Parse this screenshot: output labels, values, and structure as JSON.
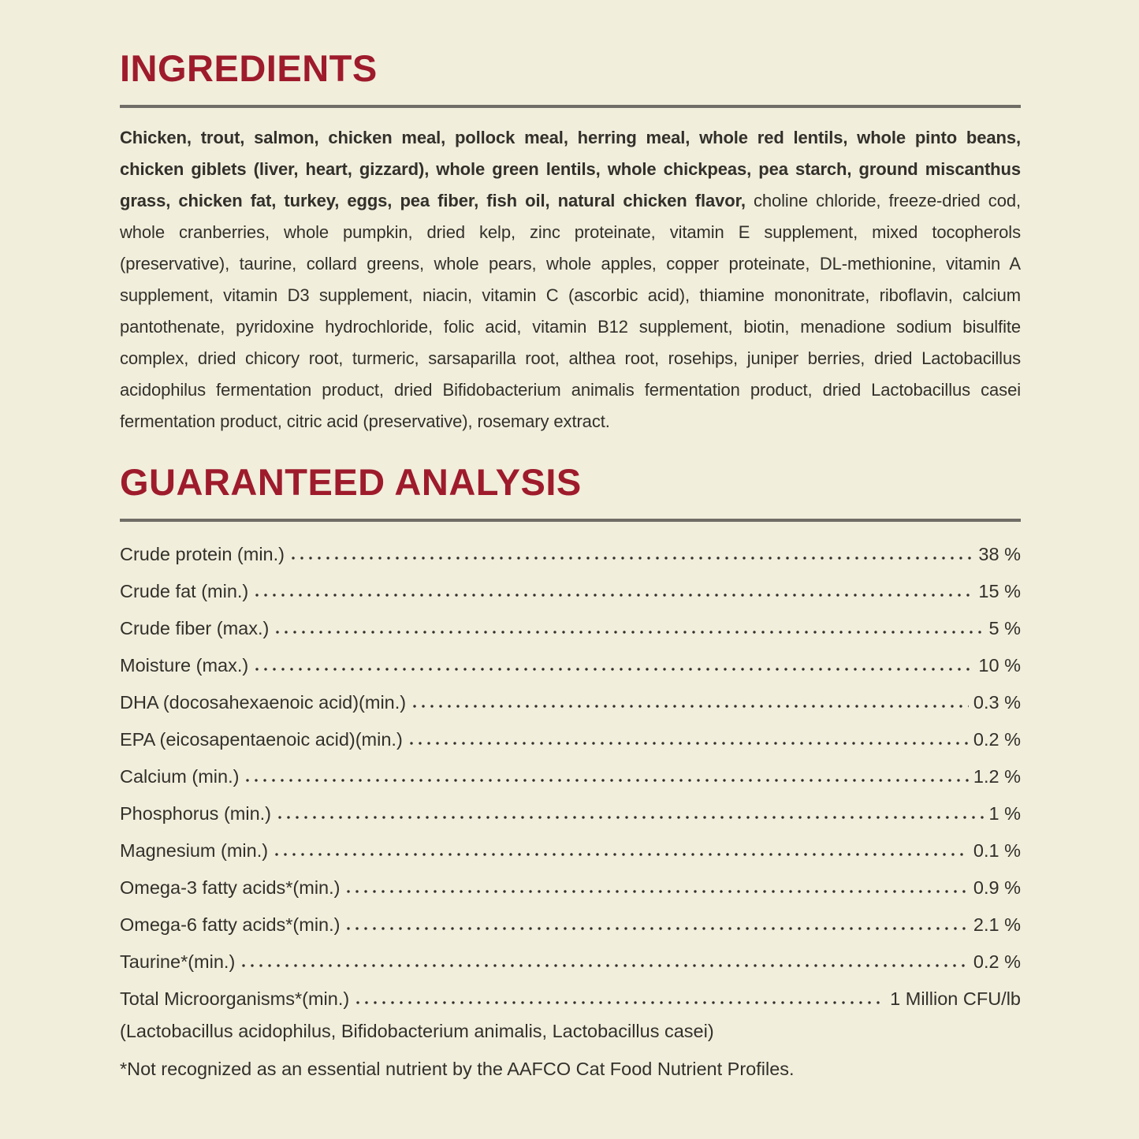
{
  "page": {
    "background_color": "#f1eedc",
    "accent_color": "#9e1b2c",
    "rule_color": "#6f6d65",
    "text_color": "#32302a"
  },
  "ingredients": {
    "title": "INGREDIENTS",
    "primary": "Chicken, trout, salmon, chicken meal, pollock meal, herring meal, whole red lentils, whole pinto beans, chicken giblets (liver, heart, gizzard), whole green lentils, whole chickpeas, pea starch, ground miscanthus grass, chicken fat, turkey, eggs, pea fiber, fish oil, natural chicken flavor,",
    "secondary": "choline chloride, freeze-dried cod, whole cranberries, whole pumpkin, dried kelp, zinc proteinate, vitamin E supplement, mixed tocopherols (preservative), taurine, collard greens, whole pears, whole apples, copper proteinate, DL-methionine, vitamin A supplement, vitamin D3 supplement, niacin, vitamin C (ascorbic acid), thiamine mononitrate, riboflavin, calcium pantothenate, pyridoxine hydrochloride, folic acid, vitamin B12 supplement, biotin, menadione sodium bisulfite complex, dried chicory root, turmeric, sarsaparilla root, althea root, rosehips, juniper berries, dried Lactobacillus acidophilus fermentation product, dried Bifidobacterium animalis fermentation product, dried Lactobacillus casei fermentation product, citric acid (preservative), rosemary extract."
  },
  "analysis": {
    "title": "GUARANTEED ANALYSIS",
    "rows": [
      {
        "label": "Crude protein (min.)",
        "value": "38 %"
      },
      {
        "label": "Crude fat (min.)",
        "value": "15 %"
      },
      {
        "label": "Crude fiber (max.)",
        "value": "5 %"
      },
      {
        "label": "Moisture (max.)",
        "value": "10 %"
      },
      {
        "label": "DHA (docosahexaenoic acid)(min.)",
        "value": "0.3 %"
      },
      {
        "label": "EPA (eicosapentaenoic acid)(min.)",
        "value": "0.2 %"
      },
      {
        "label": "Calcium (min.)",
        "value": "1.2 %"
      },
      {
        "label": "Phosphorus (min.)",
        "value": "1 %"
      },
      {
        "label": "Magnesium (min.)",
        "value": "0.1 %"
      },
      {
        "label": "Omega-3 fatty acids*(min.)",
        "value": "0.9 %"
      },
      {
        "label": "Omega-6 fatty acids*(min.)",
        "value": "2.1 %"
      },
      {
        "label": "Taurine*(min.)",
        "value": "0.2 %"
      },
      {
        "label": "Total Microorganisms*(min.)",
        "value": "1 Million CFU/lb"
      }
    ],
    "microorganisms_note": "(Lactobacillus acidophilus, Bifidobacterium animalis, Lactobacillus casei)",
    "footnote": "*Not recognized as an essential nutrient by the AAFCO Cat Food Nutrient Profiles."
  }
}
